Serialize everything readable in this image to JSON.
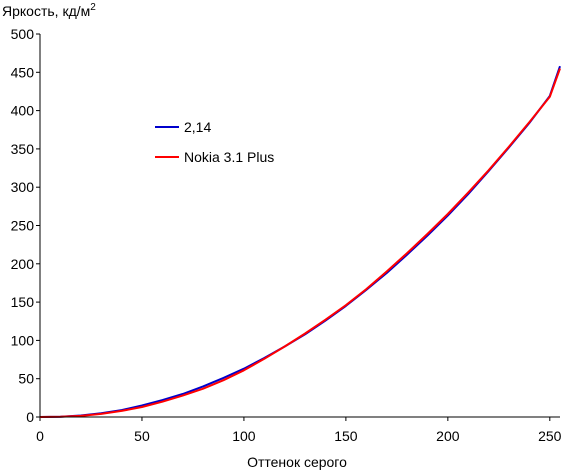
{
  "chart_data": {
    "type": "line",
    "title": "",
    "ylabel": "Яркость, кд/м",
    "ylabel_sup": "2",
    "xlabel": "Оттенок серого",
    "xlim": [
      0,
      255
    ],
    "ylim": [
      0,
      500
    ],
    "x_ticks": [
      0,
      50,
      100,
      150,
      200,
      250
    ],
    "y_ticks": [
      0,
      50,
      100,
      150,
      200,
      250,
      300,
      350,
      400,
      450,
      500
    ],
    "grid": false,
    "legend_position": "upper-left",
    "series": [
      {
        "name": "2,14",
        "color": "#0000cc",
        "x": [
          0,
          10,
          20,
          30,
          40,
          50,
          60,
          70,
          80,
          90,
          100,
          110,
          120,
          130,
          140,
          150,
          160,
          170,
          180,
          190,
          200,
          210,
          220,
          230,
          240,
          250,
          255
        ],
        "y": [
          0,
          0.4,
          2,
          5,
          9,
          15,
          22,
          30,
          40,
          51,
          63,
          77,
          92,
          108,
          126,
          145,
          166,
          188,
          212,
          237,
          263,
          291,
          321,
          352,
          384,
          419,
          458
        ]
      },
      {
        "name": "Nokia 3.1 Plus",
        "color": "#ff0000",
        "x": [
          0,
          10,
          20,
          30,
          40,
          50,
          60,
          70,
          80,
          90,
          100,
          110,
          120,
          130,
          140,
          150,
          160,
          170,
          180,
          190,
          200,
          210,
          220,
          230,
          240,
          250,
          255
        ],
        "y": [
          0,
          0.3,
          1.5,
          4,
          8,
          13,
          20,
          28,
          37,
          48,
          61,
          76,
          92,
          109,
          127,
          146,
          167,
          190,
          214,
          239,
          265,
          293,
          322,
          353,
          385,
          418,
          455
        ]
      }
    ]
  }
}
